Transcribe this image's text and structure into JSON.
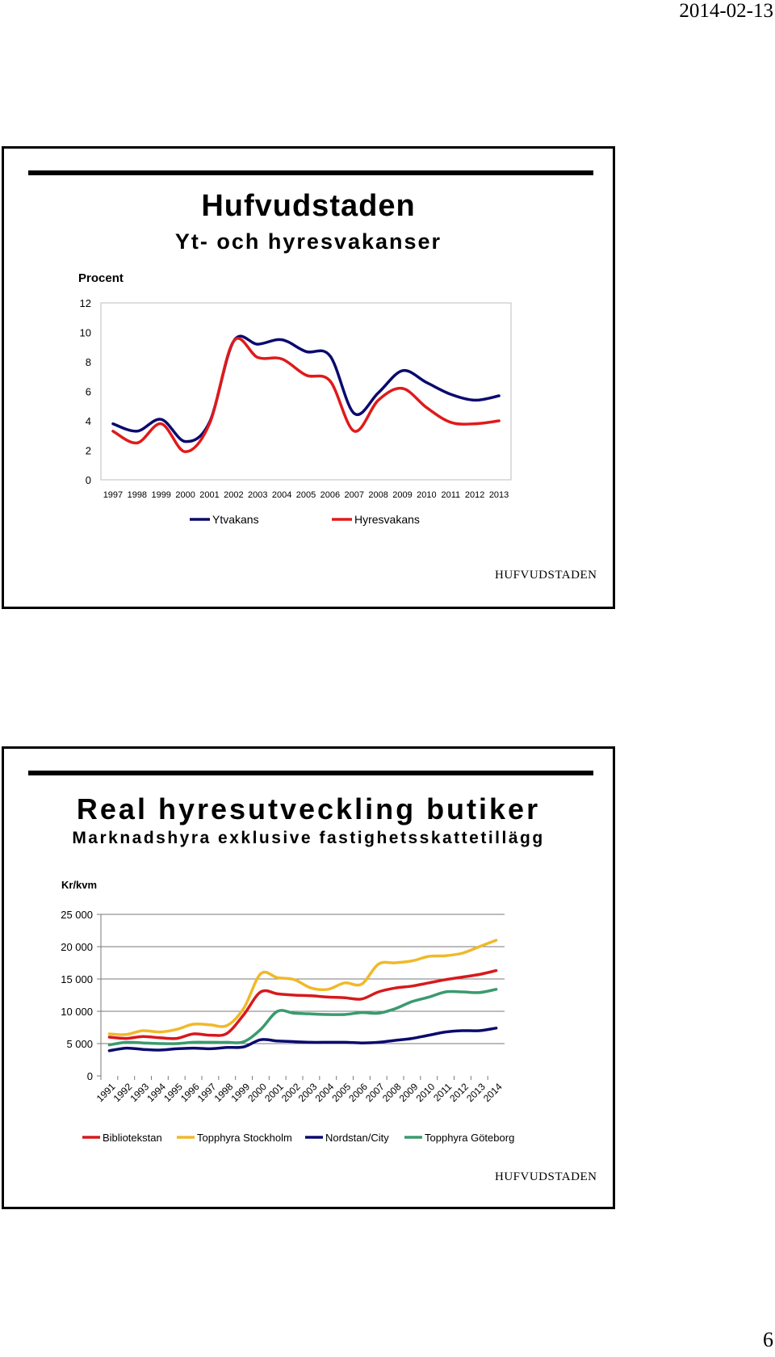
{
  "page": {
    "date": "2014-02-13",
    "page_number": "6"
  },
  "chart_data": [
    {
      "type": "line",
      "title": "Hufvudstaden",
      "subtitle": "Yt- och hyresvakanser",
      "ylabel": "Procent",
      "ylim": [
        0,
        12
      ],
      "yticks": [
        "0",
        "2",
        "4",
        "6",
        "8",
        "10",
        "12"
      ],
      "categories": [
        "1997",
        "1998",
        "1999",
        "2000",
        "2001",
        "2002",
        "2003",
        "2004",
        "2005",
        "2006",
        "2007",
        "2008",
        "2009",
        "2010",
        "2011",
        "2012",
        "2013"
      ],
      "series": [
        {
          "name": "Ytvakans",
          "color": "#0a0a6e",
          "values": [
            3.8,
            3.3,
            4.1,
            2.6,
            3.9,
            9.4,
            9.2,
            9.5,
            8.7,
            8.4,
            4.5,
            5.9,
            7.4,
            6.6,
            5.8,
            5.4,
            5.7
          ]
        },
        {
          "name": "Hyresvakans",
          "color": "#e01a1a",
          "values": [
            3.3,
            2.5,
            3.8,
            1.9,
            3.8,
            9.4,
            8.3,
            8.2,
            7.1,
            6.7,
            3.3,
            5.4,
            6.2,
            4.9,
            3.9,
            3.8,
            4.0
          ]
        }
      ],
      "logo": "HUFVUDSTADEN"
    },
    {
      "type": "line",
      "title": "Real hyresutveckling butiker",
      "subtitle": "Marknadshyra exklusive fastighetsskattetillägg",
      "ylabel": "Kr/kvm",
      "ylim": [
        0,
        25000
      ],
      "yticks": [
        "0",
        "5 000",
        "10 000",
        "15 000",
        "20 000",
        "25 000"
      ],
      "categories": [
        "1991",
        "1992",
        "1993",
        "1994",
        "1995",
        "1996",
        "1997",
        "1998",
        "1999",
        "2000",
        "2001",
        "2002",
        "2003",
        "2004",
        "2005",
        "2006",
        "2007",
        "2008",
        "2009",
        "2010",
        "2011",
        "2012",
        "2013",
        "2014"
      ],
      "series": [
        {
          "name": "Bibliotekstan",
          "color": "#d7191c",
          "values": [
            6000,
            5800,
            6100,
            5900,
            5800,
            6500,
            6300,
            6600,
            9500,
            13000,
            12700,
            12500,
            12400,
            12200,
            12100,
            11900,
            13000,
            13600,
            13900,
            14400,
            14900,
            15300,
            15700,
            16300
          ]
        },
        {
          "name": "Topphyra Stockholm",
          "color": "#f0b92a",
          "values": [
            6500,
            6400,
            7000,
            6800,
            7200,
            8000,
            7900,
            7800,
            10500,
            15800,
            15200,
            14900,
            13600,
            13400,
            14400,
            14200,
            17300,
            17500,
            17800,
            18500,
            18600,
            19000,
            20000,
            21000
          ]
        },
        {
          "name": "Nordstan/City",
          "color": "#0a0a6e",
          "values": [
            3900,
            4300,
            4100,
            4000,
            4200,
            4300,
            4200,
            4400,
            4500,
            5600,
            5400,
            5300,
            5200,
            5200,
            5200,
            5100,
            5200,
            5500,
            5800,
            6300,
            6800,
            7000,
            7000,
            7400
          ]
        },
        {
          "name": "Topphyra Göteborg",
          "color": "#3a9a6e",
          "values": [
            4800,
            5200,
            5100,
            5000,
            5000,
            5200,
            5200,
            5200,
            5300,
            7200,
            10000,
            9700,
            9600,
            9500,
            9500,
            9800,
            9700,
            10400,
            11500,
            12200,
            13000,
            13000,
            12900,
            13400
          ]
        }
      ],
      "logo": "HUFVUDSTADEN"
    }
  ]
}
